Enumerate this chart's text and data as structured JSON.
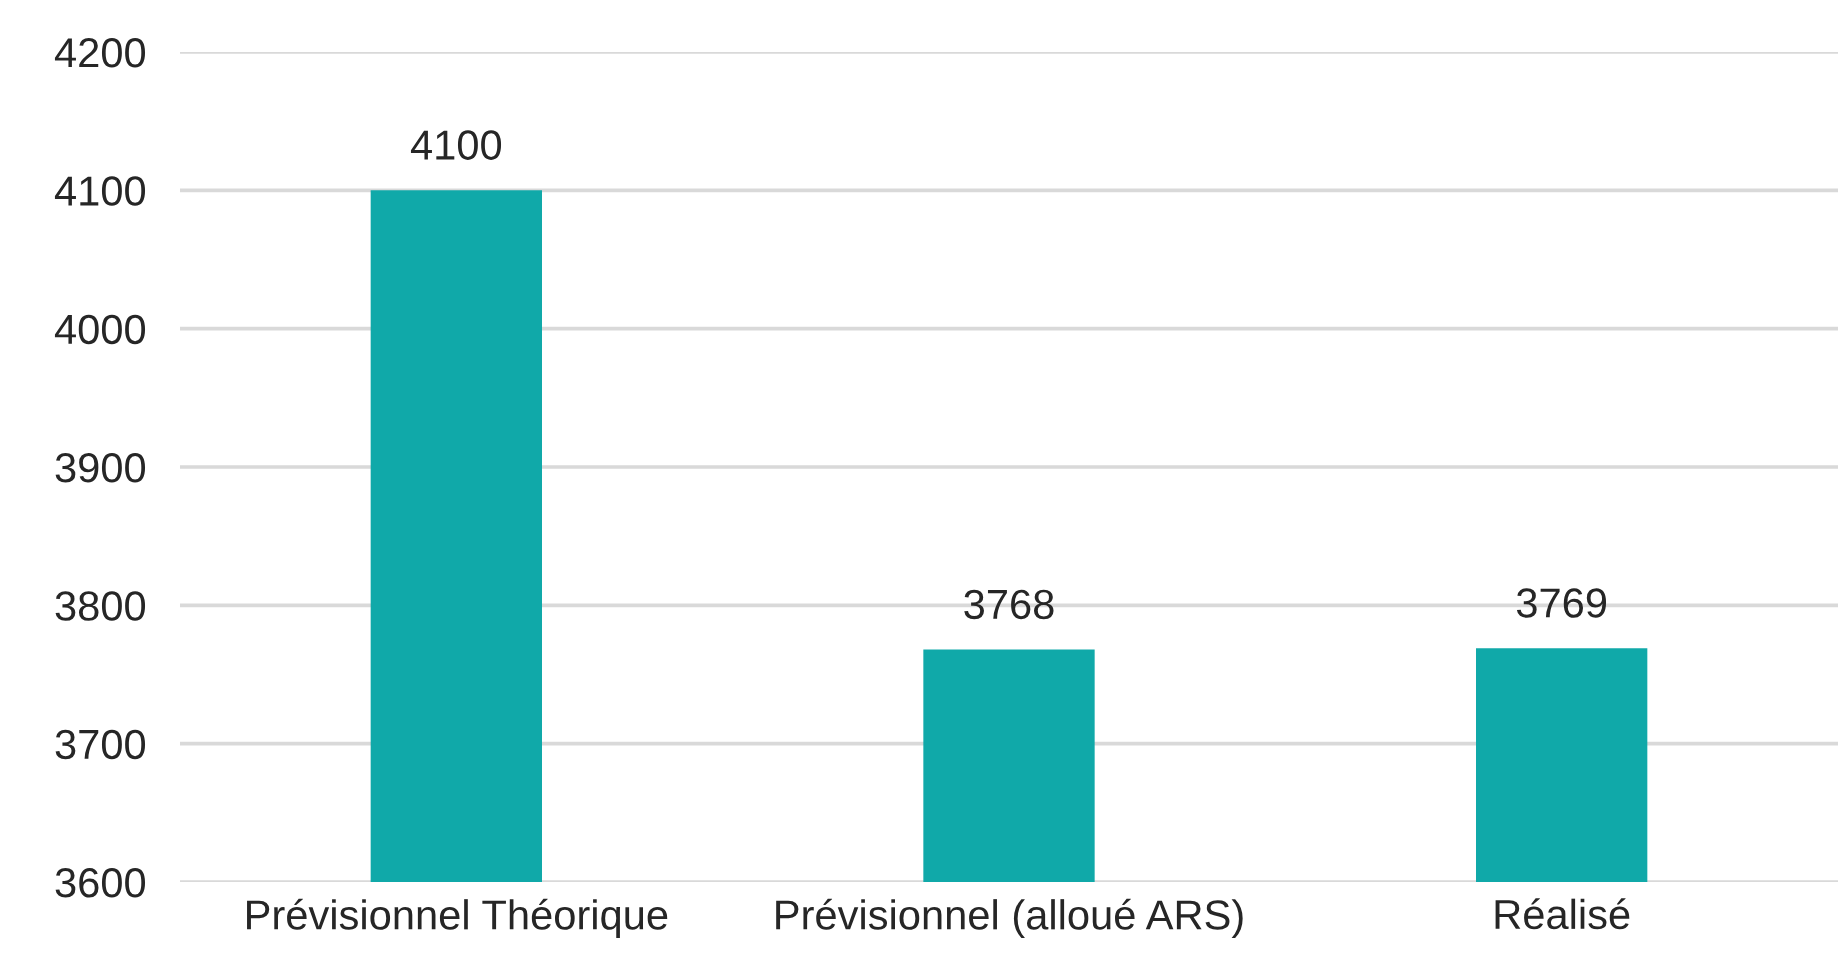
{
  "chart_data": {
    "type": "bar",
    "categories": [
      "Prévisionnel Théorique",
      "Prévisionnel (alloué ARS)",
      "Réalisé"
    ],
    "values": [
      4100,
      3768,
      3769
    ],
    "color": "#10a9a9",
    "ylim": [
      3600,
      4200
    ],
    "yticks": [
      3600,
      3700,
      3800,
      3900,
      4000,
      4100,
      4200
    ],
    "grid": "y",
    "data_labels": true
  }
}
